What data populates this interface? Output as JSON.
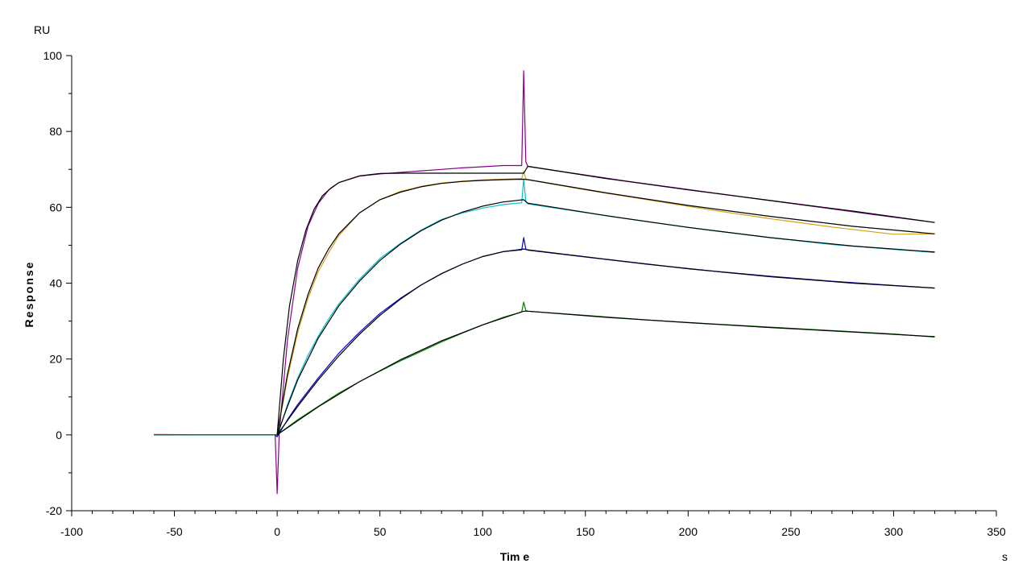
{
  "chart_data": {
    "type": "line",
    "title": "",
    "xlabel": "Tim e",
    "ylabel": "Response",
    "x_unit": "s",
    "y_unit": "RU",
    "xlim": [
      -100,
      350
    ],
    "ylim": [
      -20,
      100
    ],
    "x_ticks": [
      -100,
      -50,
      0,
      50,
      100,
      150,
      200,
      250,
      300,
      350
    ],
    "y_ticks": [
      -20,
      0,
      20,
      40,
      60,
      80,
      100
    ],
    "grid": false,
    "legend": "none",
    "series": [
      {
        "color": "#8b008b",
        "points": [
          [
            -60,
            0.1
          ],
          [
            -30,
            0.0
          ],
          [
            -1,
            0.0
          ],
          [
            0,
            -15.5
          ],
          [
            1,
            0.5
          ],
          [
            5,
            25
          ],
          [
            10,
            44
          ],
          [
            15,
            55
          ],
          [
            20,
            61
          ],
          [
            25,
            64.5
          ],
          [
            30,
            66.5
          ],
          [
            40,
            68.2
          ],
          [
            50,
            68.8
          ],
          [
            60,
            69.2
          ],
          [
            70,
            69.6
          ],
          [
            80,
            70.0
          ],
          [
            90,
            70.4
          ],
          [
            100,
            70.7
          ],
          [
            110,
            71.0
          ],
          [
            119,
            71.0
          ],
          [
            120,
            96
          ],
          [
            121,
            72
          ],
          [
            122,
            70.8
          ],
          [
            140,
            69.3
          ],
          [
            170,
            66.9
          ],
          [
            200,
            64.7
          ],
          [
            230,
            62.5
          ],
          [
            260,
            60.3
          ],
          [
            290,
            58.1
          ],
          [
            320,
            56.0
          ]
        ]
      },
      {
        "color": "#d4a017",
        "points": [
          [
            -60,
            0.0
          ],
          [
            -1,
            0.0
          ],
          [
            0,
            0.0
          ],
          [
            5,
            15
          ],
          [
            10,
            27
          ],
          [
            15,
            36
          ],
          [
            20,
            43
          ],
          [
            25,
            48
          ],
          [
            30,
            52.5
          ],
          [
            40,
            58.5
          ],
          [
            50,
            62
          ],
          [
            60,
            64.2
          ],
          [
            70,
            65.5
          ],
          [
            80,
            66.4
          ],
          [
            90,
            66.9
          ],
          [
            100,
            67.2
          ],
          [
            110,
            67.4
          ],
          [
            119,
            67.6
          ],
          [
            120,
            69.5
          ],
          [
            121,
            67.5
          ],
          [
            122,
            67.3
          ],
          [
            150,
            64.6
          ],
          [
            180,
            62.0
          ],
          [
            210,
            59.4
          ],
          [
            240,
            57.0
          ],
          [
            270,
            54.8
          ],
          [
            300,
            52.9
          ],
          [
            320,
            53.0
          ]
        ]
      },
      {
        "color": "#00c0d0",
        "points": [
          [
            -60,
            0.0
          ],
          [
            -1,
            0.0
          ],
          [
            0,
            -0.5
          ],
          [
            5,
            8
          ],
          [
            10,
            15
          ],
          [
            15,
            21
          ],
          [
            20,
            26
          ],
          [
            25,
            30.5
          ],
          [
            30,
            34.5
          ],
          [
            40,
            41
          ],
          [
            50,
            46.5
          ],
          [
            60,
            50.5
          ],
          [
            70,
            54
          ],
          [
            80,
            56.8
          ],
          [
            90,
            58.5
          ],
          [
            100,
            59.8
          ],
          [
            110,
            60.7
          ],
          [
            119,
            61.2
          ],
          [
            120,
            67.5
          ],
          [
            121,
            61.5
          ],
          [
            122,
            60.9
          ],
          [
            150,
            58.6
          ],
          [
            180,
            56.2
          ],
          [
            210,
            54.0
          ],
          [
            240,
            52.0
          ],
          [
            270,
            50.2
          ],
          [
            300,
            48.9
          ],
          [
            320,
            48.1
          ]
        ]
      },
      {
        "color": "#0000cc",
        "points": [
          [
            -60,
            0.0
          ],
          [
            -1,
            0.0
          ],
          [
            0,
            -0.5
          ],
          [
            5,
            4
          ],
          [
            10,
            8
          ],
          [
            20,
            15
          ],
          [
            30,
            21.5
          ],
          [
            40,
            27
          ],
          [
            50,
            32
          ],
          [
            60,
            36
          ],
          [
            70,
            39.5
          ],
          [
            80,
            42.5
          ],
          [
            90,
            45
          ],
          [
            100,
            47
          ],
          [
            110,
            48.3
          ],
          [
            119,
            48.8
          ],
          [
            120,
            52
          ],
          [
            121,
            49
          ],
          [
            122,
            48.7
          ],
          [
            150,
            46.9
          ],
          [
            180,
            45.0
          ],
          [
            210,
            43.3
          ],
          [
            240,
            41.8
          ],
          [
            270,
            40.5
          ],
          [
            300,
            39.4
          ],
          [
            320,
            38.7
          ]
        ]
      },
      {
        "color": "#008000",
        "points": [
          [
            -60,
            0.0
          ],
          [
            -1,
            0.0
          ],
          [
            0,
            0.0
          ],
          [
            10,
            4
          ],
          [
            20,
            7.5
          ],
          [
            30,
            11
          ],
          [
            40,
            14
          ],
          [
            50,
            16.8
          ],
          [
            60,
            19.5
          ],
          [
            70,
            22
          ],
          [
            80,
            24.5
          ],
          [
            90,
            26.8
          ],
          [
            100,
            29
          ],
          [
            110,
            31
          ],
          [
            119,
            32.4
          ],
          [
            120,
            35
          ],
          [
            121,
            32.8
          ],
          [
            122,
            32.6
          ],
          [
            150,
            31.5
          ],
          [
            180,
            30.3
          ],
          [
            210,
            29.3
          ],
          [
            240,
            28.4
          ],
          [
            270,
            27.5
          ],
          [
            300,
            26.6
          ],
          [
            320,
            25.8
          ]
        ]
      },
      {
        "color": "#000000",
        "points": [
          [
            0,
            0
          ],
          [
            3,
            20
          ],
          [
            6,
            34
          ],
          [
            10,
            46
          ],
          [
            14,
            54
          ],
          [
            18,
            59.5
          ],
          [
            22,
            63
          ],
          [
            26,
            65
          ],
          [
            30,
            66.5
          ],
          [
            40,
            68.3
          ],
          [
            50,
            68.9
          ],
          [
            60,
            69.0
          ],
          [
            120,
            69.0
          ],
          [
            122,
            70.8
          ],
          [
            160,
            67.6
          ],
          [
            200,
            64.6
          ],
          [
            240,
            61.8
          ],
          [
            280,
            59.0
          ],
          [
            320,
            56.0
          ]
        ]
      },
      {
        "color": "#000000",
        "points": [
          [
            0,
            0
          ],
          [
            5,
            16
          ],
          [
            10,
            28
          ],
          [
            15,
            37
          ],
          [
            20,
            44
          ],
          [
            25,
            49
          ],
          [
            30,
            53
          ],
          [
            40,
            58.5
          ],
          [
            50,
            62
          ],
          [
            60,
            64
          ],
          [
            70,
            65.4
          ],
          [
            80,
            66.3
          ],
          [
            90,
            66.8
          ],
          [
            100,
            67.1
          ],
          [
            110,
            67.3
          ],
          [
            120,
            67.4
          ],
          [
            122,
            67.3
          ],
          [
            160,
            63.8
          ],
          [
            200,
            60.5
          ],
          [
            240,
            57.6
          ],
          [
            280,
            55.0
          ],
          [
            320,
            53.0
          ]
        ]
      },
      {
        "color": "#000000",
        "points": [
          [
            0,
            0
          ],
          [
            5,
            7.5
          ],
          [
            10,
            14.5
          ],
          [
            20,
            25.5
          ],
          [
            30,
            34
          ],
          [
            40,
            40.5
          ],
          [
            50,
            46
          ],
          [
            60,
            50.3
          ],
          [
            70,
            53.8
          ],
          [
            80,
            56.6
          ],
          [
            90,
            58.7
          ],
          [
            100,
            60.3
          ],
          [
            110,
            61.4
          ],
          [
            120,
            62.0
          ],
          [
            122,
            61.1
          ],
          [
            160,
            57.8
          ],
          [
            200,
            54.7
          ],
          [
            240,
            52.0
          ],
          [
            280,
            49.8
          ],
          [
            320,
            48.2
          ]
        ]
      },
      {
        "color": "#000000",
        "points": [
          [
            0,
            0
          ],
          [
            10,
            7.5
          ],
          [
            20,
            14.5
          ],
          [
            30,
            20.8
          ],
          [
            40,
            26.5
          ],
          [
            50,
            31.5
          ],
          [
            60,
            35.8
          ],
          [
            70,
            39.5
          ],
          [
            80,
            42.5
          ],
          [
            90,
            45
          ],
          [
            100,
            47
          ],
          [
            110,
            48.3
          ],
          [
            120,
            49.0
          ],
          [
            122,
            48.8
          ],
          [
            160,
            46.3
          ],
          [
            200,
            43.8
          ],
          [
            240,
            41.7
          ],
          [
            280,
            40.0
          ],
          [
            320,
            38.7
          ]
        ]
      },
      {
        "color": "#000000",
        "points": [
          [
            0,
            0
          ],
          [
            20,
            7.4
          ],
          [
            40,
            14
          ],
          [
            60,
            19.8
          ],
          [
            80,
            24.8
          ],
          [
            100,
            29
          ],
          [
            120,
            32.6
          ],
          [
            122,
            32.6
          ],
          [
            160,
            31.0
          ],
          [
            200,
            29.6
          ],
          [
            240,
            28.3
          ],
          [
            280,
            27.1
          ],
          [
            320,
            25.9
          ]
        ]
      }
    ]
  }
}
